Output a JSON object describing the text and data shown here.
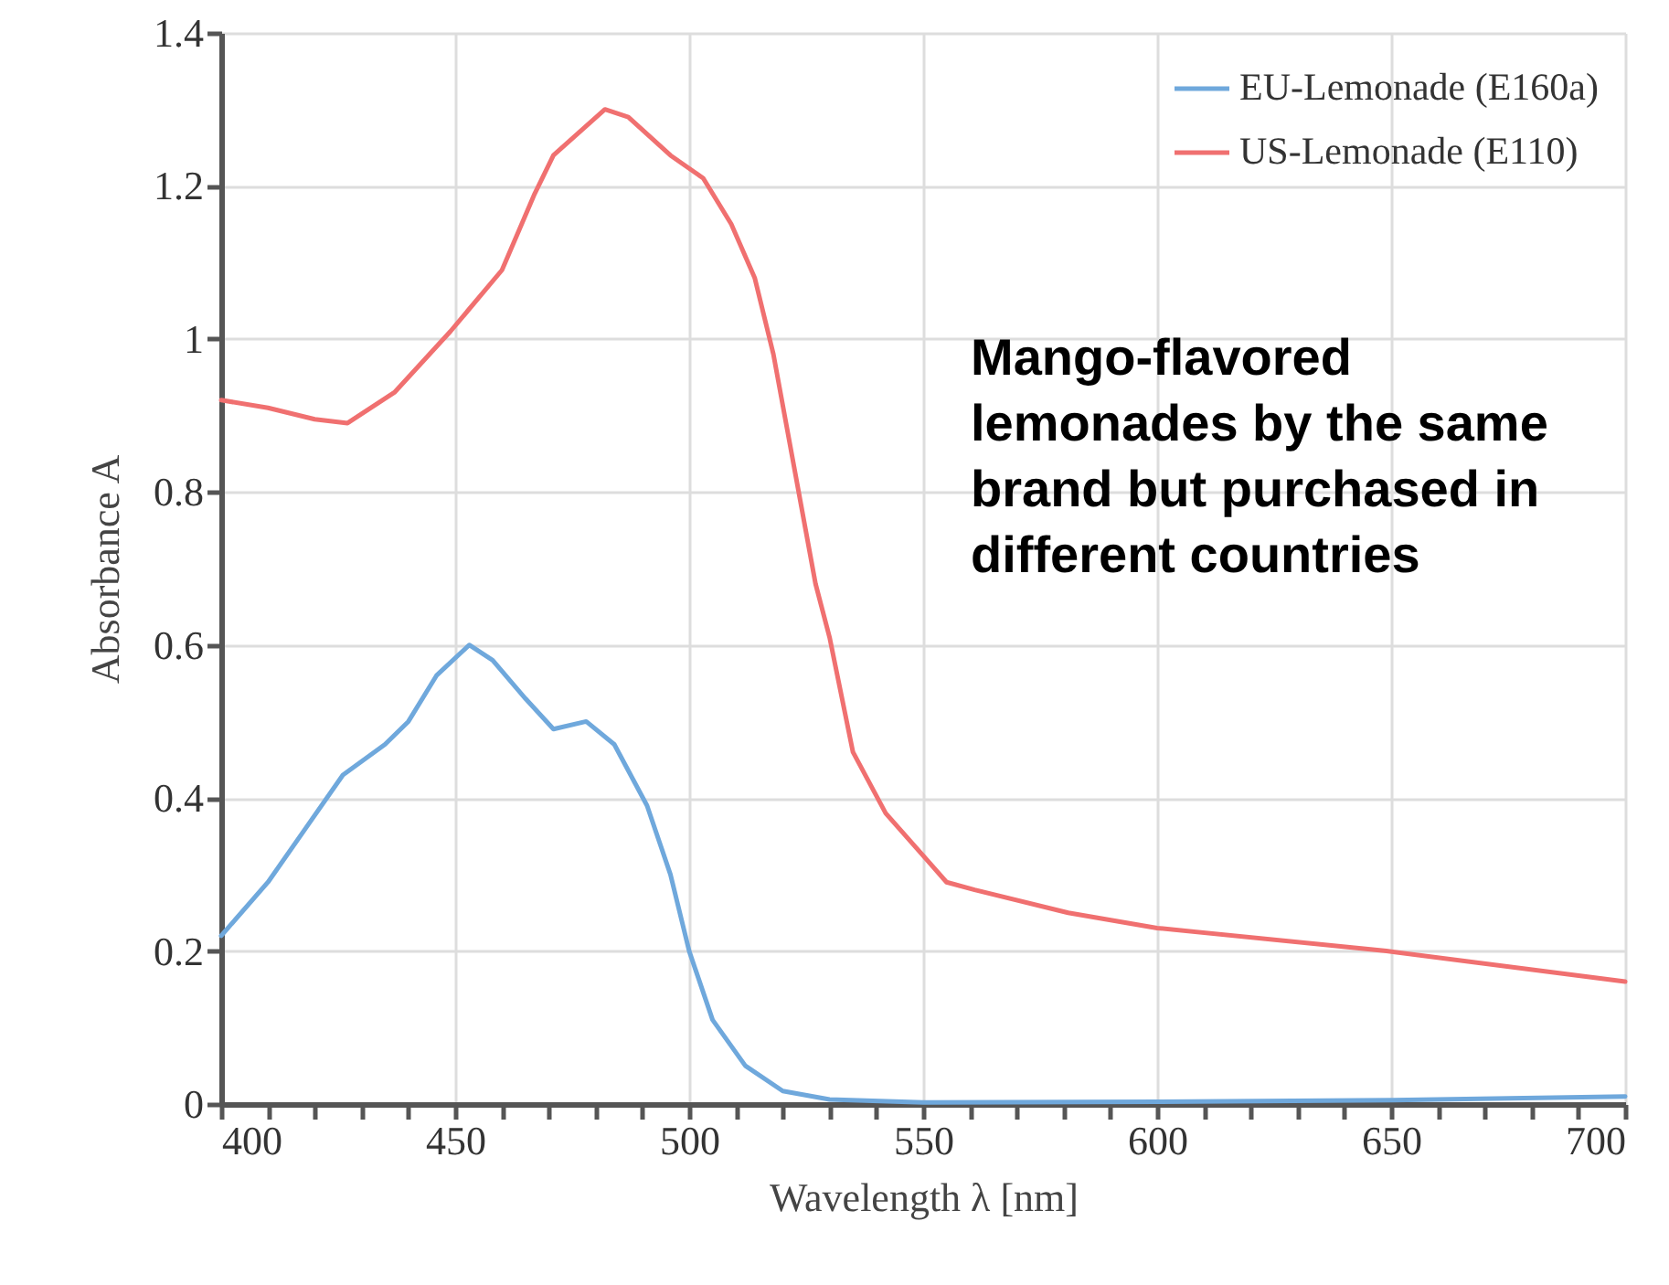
{
  "chart_data": {
    "type": "line",
    "xlabel": "Wavelength λ [nm]",
    "ylabel": "Absorbance A",
    "xlim": [
      400,
      700
    ],
    "ylim": [
      0,
      1.4
    ],
    "xticks": [
      400,
      {
        "value": 410,
        "label": null
      },
      {
        "value": 420,
        "label": null
      },
      {
        "value": 430,
        "label": null
      },
      {
        "value": 440,
        "label": null
      },
      450,
      {
        "value": 460,
        "label": null
      },
      {
        "value": 470,
        "label": null
      },
      {
        "value": 480,
        "label": null
      },
      {
        "value": 490,
        "label": null
      },
      500,
      {
        "value": 510,
        "label": null
      },
      {
        "value": 520,
        "label": null
      },
      {
        "value": 530,
        "label": null
      },
      {
        "value": 540,
        "label": null
      },
      550,
      {
        "value": 560,
        "label": null
      },
      {
        "value": 570,
        "label": null
      },
      {
        "value": 580,
        "label": null
      },
      {
        "value": 590,
        "label": null
      },
      600,
      {
        "value": 610,
        "label": null
      },
      {
        "value": 620,
        "label": null
      },
      {
        "value": 630,
        "label": null
      },
      {
        "value": 640,
        "label": null
      },
      650,
      {
        "value": 660,
        "label": null
      },
      {
        "value": 670,
        "label": null
      },
      {
        "value": 680,
        "label": null
      },
      {
        "value": 690,
        "label": null
      },
      700
    ],
    "yticks": [
      0,
      0.2,
      0.4,
      0.6,
      0.8,
      1,
      1.2,
      1.4
    ],
    "grid": true,
    "legend": "top right",
    "marker": "none",
    "line_style": "solid",
    "annotations": [
      "Mango-flavored lemonades by the same brand but purchased in different countries"
    ],
    "series": [
      {
        "name": "EU-Lemonade (E160a)",
        "color": "#6fa8dc",
        "x": [
          400,
          410,
          418,
          426,
          435,
          440,
          446,
          453,
          458,
          465,
          471,
          478,
          484,
          491,
          496,
          500,
          505,
          512,
          520,
          530,
          550,
          600,
          650,
          700
        ],
        "values": [
          0.22,
          0.29,
          0.36,
          0.43,
          0.47,
          0.5,
          0.56,
          0.6,
          0.58,
          0.53,
          0.49,
          0.5,
          0.47,
          0.39,
          0.3,
          0.2,
          0.11,
          0.05,
          0.017,
          0.006,
          0.002,
          0.003,
          0.005,
          0.01
        ]
      },
      {
        "name": "US-Lemonade (E110)",
        "color": "#f07070",
        "x": [
          400,
          410,
          420,
          427,
          437,
          449,
          460,
          467,
          471,
          482,
          487,
          496,
          503,
          509,
          514,
          518,
          527,
          530,
          535,
          542,
          555,
          561,
          581,
          600,
          649,
          700
        ],
        "values": [
          0.92,
          0.91,
          0.895,
          0.89,
          0.93,
          1.01,
          1.09,
          1.19,
          1.24,
          1.3,
          1.29,
          1.24,
          1.21,
          1.15,
          1.08,
          0.98,
          0.68,
          0.61,
          0.46,
          0.38,
          0.29,
          0.28,
          0.25,
          0.23,
          0.2,
          0.16
        ]
      }
    ]
  }
}
